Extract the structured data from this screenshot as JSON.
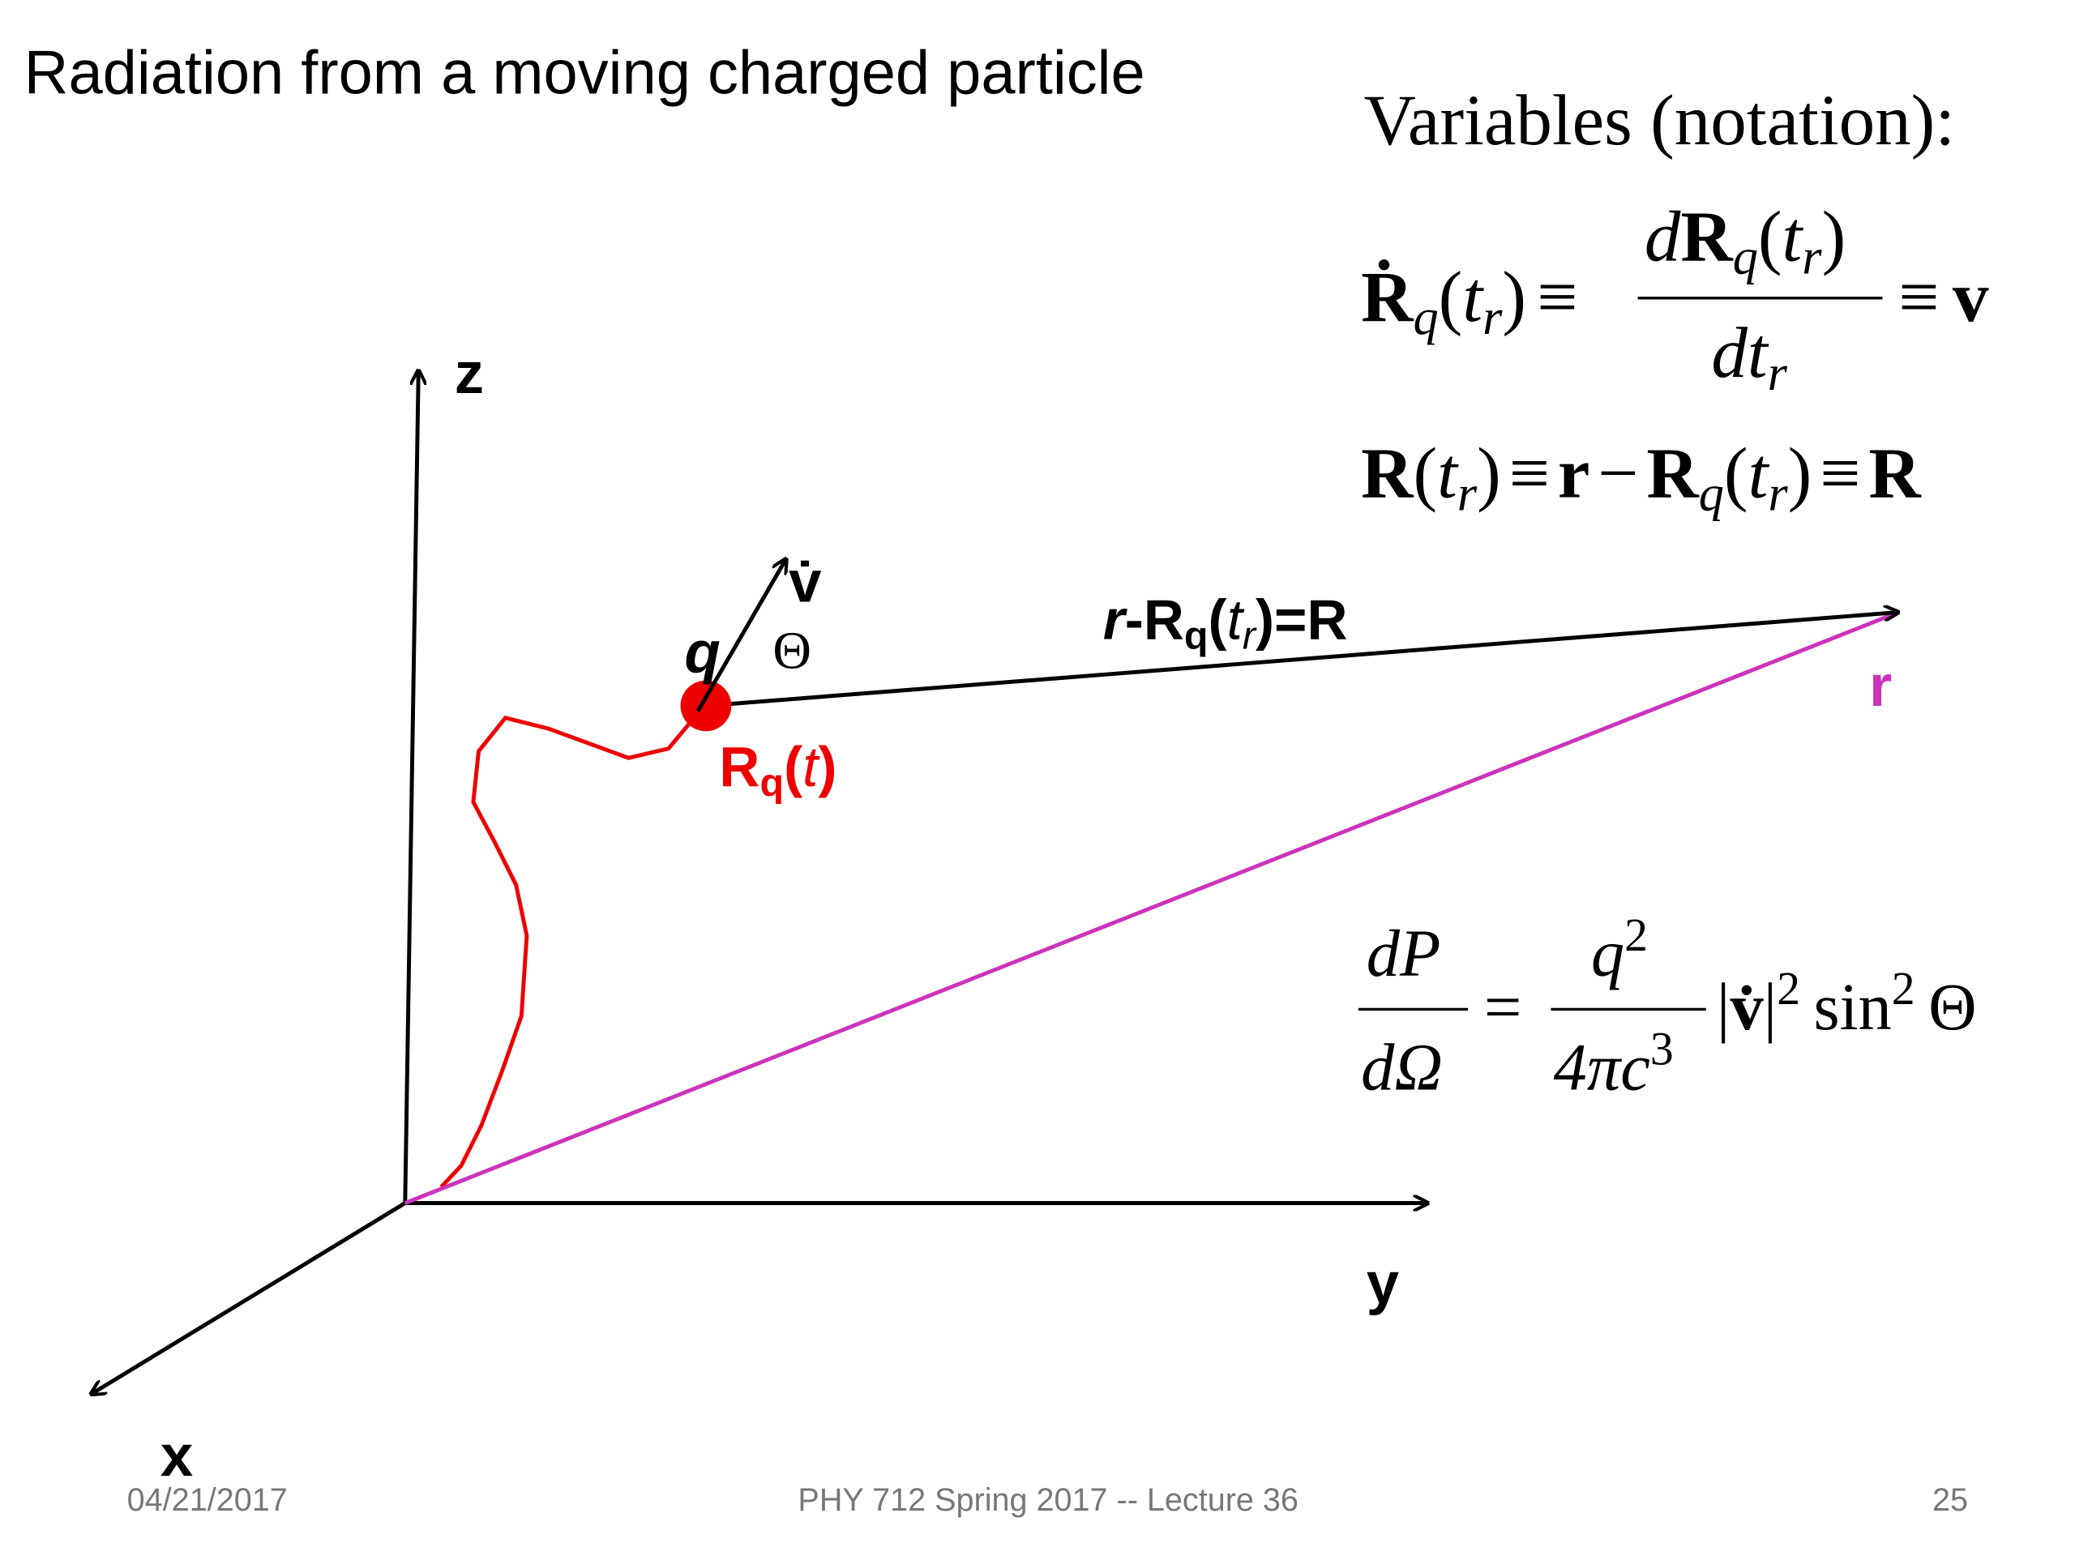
{
  "title": "Radiation from a moving charged particle",
  "variables": {
    "heading": "Variables (notation):",
    "eq1": {
      "lhs": [
        "Ṙ",
        "q",
        "(",
        "t",
        "r",
        ")",
        "≡"
      ],
      "numerator": [
        "d",
        "R",
        "q",
        "(",
        "t",
        "r",
        ")"
      ],
      "denominator": [
        "dt",
        "r"
      ],
      "rhs": [
        "≡",
        "v"
      ]
    },
    "eq2": [
      "R",
      "(",
      "t",
      "r",
      ")",
      "≡",
      "r",
      "−",
      "R",
      "q",
      "(",
      "t",
      "r",
      ")",
      "≡",
      "R"
    ]
  },
  "power": {
    "numerator1": "dP",
    "denominator1": "dΩ",
    "equals": "=",
    "numerator2": [
      "q",
      "2"
    ],
    "denominator2": [
      "4πc",
      "3"
    ],
    "rest": [
      "|",
      "v̇",
      "|",
      "2",
      "sin",
      "2",
      "Θ"
    ]
  },
  "diagram": {
    "z": "z",
    "y": "y",
    "x": "x",
    "vdot": "v̇",
    "q": "q",
    "theta": "Θ",
    "R_label": [
      "r",
      "-R",
      "q",
      "(",
      "t",
      "r",
      ")=R"
    ],
    "r": "r",
    "Rq_label": [
      "R",
      "q",
      "(",
      "t",
      ")"
    ]
  },
  "footer": {
    "date": "04/21/2017",
    "course": "PHY 712  Spring 2017 -- Lecture 36",
    "page": "25"
  }
}
